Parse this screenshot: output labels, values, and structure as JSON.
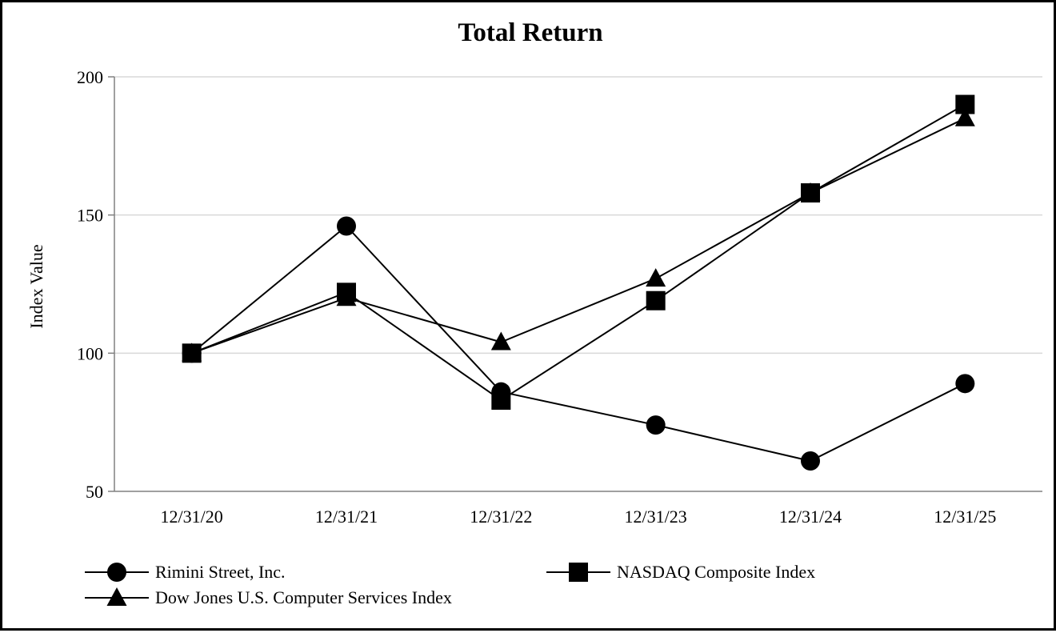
{
  "chart_data": {
    "type": "line",
    "title": "Total Return",
    "xlabel": "",
    "ylabel": "Index Value",
    "categories": [
      "12/31/20",
      "12/31/21",
      "12/31/22",
      "12/31/23",
      "12/31/24",
      "12/31/25"
    ],
    "ylim": [
      50,
      200
    ],
    "yticks": [
      50,
      100,
      150,
      200
    ],
    "grid": "horizontal",
    "legend_position": "bottom",
    "series": [
      {
        "name": "Rimini Street, Inc.",
        "marker": "circle",
        "values": [
          100,
          146,
          86,
          74,
          61,
          89
        ]
      },
      {
        "name": "NASDAQ Composite Index",
        "marker": "square",
        "values": [
          100,
          122,
          83,
          119,
          158,
          190
        ]
      },
      {
        "name": "Dow Jones U.S. Computer Services Index",
        "marker": "triangle",
        "values": [
          100,
          120,
          104,
          127,
          158,
          185
        ]
      }
    ],
    "colors": {
      "line": "#000000",
      "marker": "#000000",
      "grid": "#d9d9d9",
      "axis": "#808080"
    }
  }
}
